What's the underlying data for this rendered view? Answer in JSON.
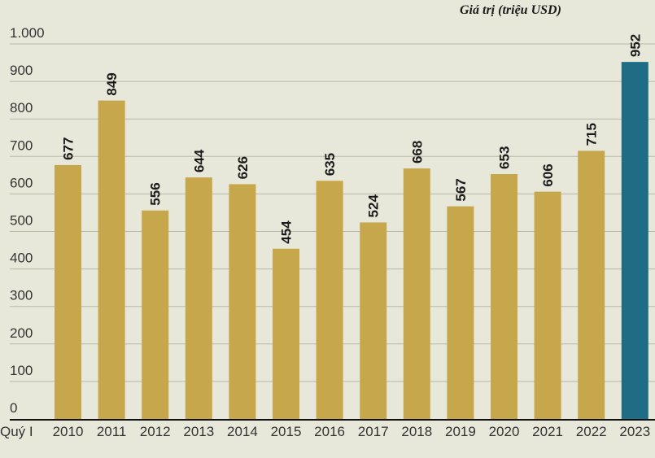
{
  "chart_data": {
    "type": "bar",
    "title": "",
    "unit_label": "Giá trị (triệu USD)",
    "xlabel": "Quý I",
    "ylabel": "",
    "categories": [
      "2010",
      "2011",
      "2012",
      "2013",
      "2014",
      "2015",
      "2016",
      "2017",
      "2018",
      "2019",
      "2020",
      "2021",
      "2022",
      "2023"
    ],
    "values": [
      677,
      849,
      556,
      644,
      626,
      454,
      635,
      524,
      668,
      567,
      653,
      606,
      715,
      952
    ],
    "value_labels": [
      "677",
      "849",
      "556",
      "644",
      "626",
      "454",
      "635",
      "524",
      "668",
      "567",
      "653",
      "606",
      "715",
      "952"
    ],
    "ylim": [
      0,
      1000
    ],
    "yticks": [
      0,
      100,
      200,
      300,
      400,
      500,
      600,
      700,
      800,
      900,
      1000
    ],
    "ytick_labels": [
      "0",
      "100",
      "200",
      "300",
      "400",
      "500",
      "600",
      "700",
      "800",
      "900",
      "1.000"
    ],
    "grid": true,
    "colors": {
      "bar": "#c6a74c",
      "highlight": "#1f6d84",
      "background": "#e8e8da"
    },
    "highlight_category": "2023"
  }
}
